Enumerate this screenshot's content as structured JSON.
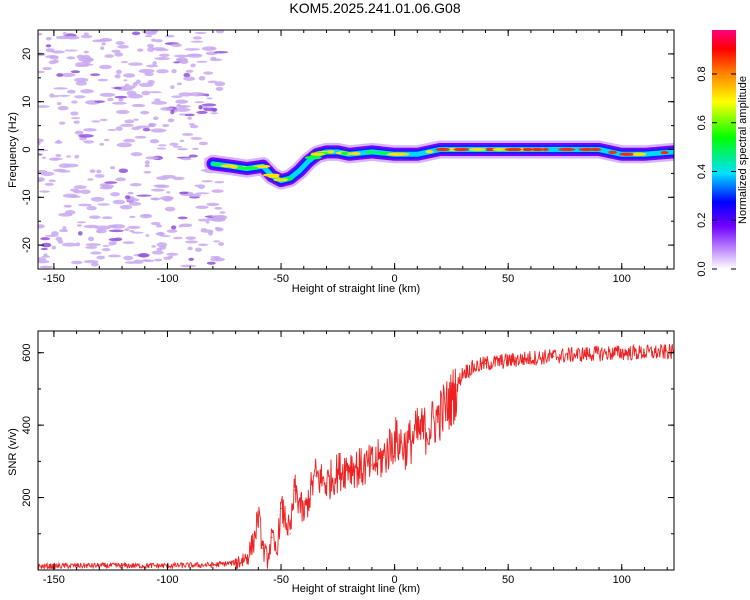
{
  "figure": {
    "title": "KOM5.2025.241.01.06.G08"
  },
  "colors": {
    "snr_line": "#ee2222",
    "noise_blob": "#c8a8f0",
    "noise_dense": "#9050d8"
  },
  "chart_data": [
    {
      "id": "spectrogram",
      "type": "heatmap",
      "xlabel": "Height of straight line (km)",
      "ylabel": "Frequency (Hz)",
      "xlim": [
        -157,
        123
      ],
      "ylim": [
        -25,
        25
      ],
      "xticks": [
        -150,
        -100,
        -50,
        0,
        50,
        100
      ],
      "yticks": [
        -20,
        -10,
        0,
        10,
        20
      ],
      "ridge_path": {
        "x": [
          -80,
          -72,
          -65,
          -58,
          -54,
          -50,
          -46,
          -42,
          -38,
          -34,
          -30,
          -25,
          -20,
          -10,
          0,
          10,
          20,
          30,
          40,
          50,
          60,
          70,
          80,
          90,
          100,
          110,
          123
        ],
        "y": [
          -3,
          -3.5,
          -4,
          -3.5,
          -5.5,
          -6.5,
          -6,
          -4.5,
          -2.5,
          -1,
          -0.5,
          -0.5,
          -1,
          -0.5,
          -1,
          -1,
          0,
          0,
          0,
          0,
          0,
          0,
          0,
          0,
          -1,
          -1,
          -0.5
        ]
      },
      "noise_region_x": [
        -157,
        -80
      ],
      "colorbar": {
        "label": "Normalized spectral amplitude",
        "range": [
          0,
          1
        ],
        "ticks": [
          "0.0",
          "0.2",
          "0.4",
          "0.6",
          "0.8"
        ]
      }
    },
    {
      "id": "snr",
      "type": "line",
      "xlabel": "Height of straight line (km)",
      "ylabel": "SNR (v/v)",
      "xlim": [
        -157,
        123
      ],
      "ylim": [
        0,
        660
      ],
      "xticks": [
        -150,
        -100,
        -50,
        0,
        50,
        100
      ],
      "yticks": [
        200,
        400,
        600
      ],
      "series": [
        {
          "name": "SNR",
          "x": [
            -157,
            -140,
            -120,
            -100,
            -80,
            -70,
            -65,
            -62,
            -60,
            -58,
            -56,
            -54,
            -52,
            -50,
            -48,
            -46,
            -44,
            -42,
            -40,
            -35,
            -30,
            -25,
            -20,
            -15,
            -10,
            -5,
            0,
            5,
            10,
            15,
            20,
            25,
            30,
            35,
            40,
            50,
            60,
            70,
            80,
            90,
            100,
            110,
            123
          ],
          "y": [
            10,
            12,
            12,
            12,
            14,
            20,
            35,
            80,
            150,
            60,
            30,
            90,
            45,
            170,
            140,
            100,
            220,
            190,
            150,
            260,
            240,
            270,
            290,
            280,
            290,
            310,
            360,
            340,
            380,
            390,
            430,
            470,
            545,
            560,
            570,
            578,
            585,
            590,
            595,
            598,
            600,
            600,
            602
          ]
        }
      ]
    }
  ]
}
